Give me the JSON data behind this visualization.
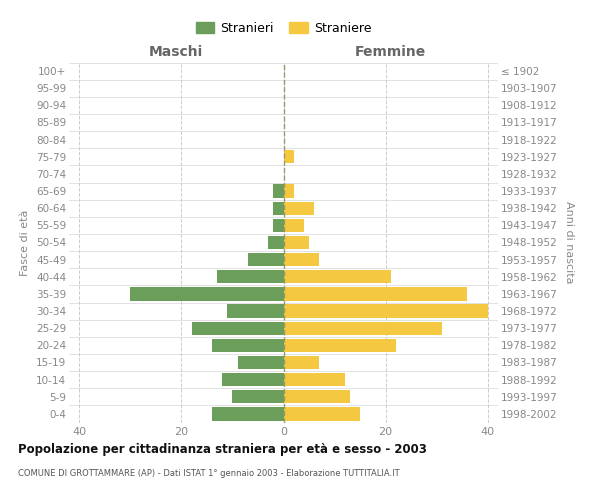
{
  "age_groups": [
    "0-4",
    "5-9",
    "10-14",
    "15-19",
    "20-24",
    "25-29",
    "30-34",
    "35-39",
    "40-44",
    "45-49",
    "50-54",
    "55-59",
    "60-64",
    "65-69",
    "70-74",
    "75-79",
    "80-84",
    "85-89",
    "90-94",
    "95-99",
    "100+"
  ],
  "birth_years": [
    "1998-2002",
    "1993-1997",
    "1988-1992",
    "1983-1987",
    "1978-1982",
    "1973-1977",
    "1968-1972",
    "1963-1967",
    "1958-1962",
    "1953-1957",
    "1948-1952",
    "1943-1947",
    "1938-1942",
    "1933-1937",
    "1928-1932",
    "1923-1927",
    "1918-1922",
    "1913-1917",
    "1908-1912",
    "1903-1907",
    "≤ 1902"
  ],
  "maschi": [
    14,
    10,
    12,
    9,
    14,
    18,
    11,
    30,
    13,
    7,
    3,
    2,
    2,
    2,
    0,
    0,
    0,
    0,
    0,
    0,
    0
  ],
  "femmine": [
    15,
    13,
    12,
    7,
    22,
    31,
    40,
    36,
    21,
    7,
    5,
    4,
    6,
    2,
    0,
    2,
    0,
    0,
    0,
    0,
    0
  ],
  "color_maschi": "#6a9e5a",
  "color_femmine": "#f5c842",
  "title": "Popolazione per cittadinanza straniera per età e sesso - 2003",
  "subtitle": "COMUNE DI GROTTAMMARE (AP) - Dati ISTAT 1° gennaio 2003 - Elaborazione TUTTITALIA.IT",
  "header_left": "Maschi",
  "header_right": "Femmine",
  "ylabel_left": "Fasce di età",
  "ylabel_right": "Anni di nascita",
  "legend_maschi": "Stranieri",
  "legend_femmine": "Straniere",
  "xlim": 42,
  "background_color": "#ffffff",
  "grid_color": "#cccccc",
  "tick_color": "#888888",
  "header_color": "#666666",
  "centerline_color": "#999966"
}
